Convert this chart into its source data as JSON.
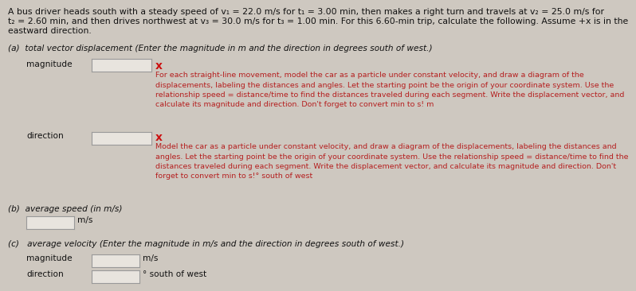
{
  "bg_color": "#cec8c0",
  "header_line1": "A bus driver heads south with a steady speed of v₁ = 22.0 m/s for t₁ = 3.00 min, then makes a right turn and travels at v₂ = 25.0 m/s for",
  "header_line2": "t₂ = 2.60 min, and then drives northwest at v₃ = 30.0 m/s for t₃ = 1.00 min. For this 6.60-min trip, calculate the following. Assume +x is in the",
  "header_line3": "eastward direction.",
  "part_a_label": "(a)  total vector displacement (Enter the magnitude in m and the direction in degrees south of west.)",
  "magnitude_label": "magnitude",
  "direction_label": "direction",
  "hint_a_mag": "For each straight-line movement, model the car as a particle under constant velocity, and draw a diagram of the\ndisplacements, labeling the distances and angles. Let the starting point be the origin of your coordinate system. Use the\nrelationship speed = distance/time to find the distances traveled during each segment. Write the displacement vector, and\ncalculate its magnitude and direction. Don't forget to convert min to s! m",
  "hint_a_dir": "Model the car as a particle under constant velocity, and draw a diagram of the displacements, labeling the distances and\nangles. Let the starting point be the origin of your coordinate system. Use the relationship speed = distance/time to find the\ndistances traveled during each segment. Write the displacement vector, and calculate its magnitude and direction. Don't\nforget to convert min to s!° south of west",
  "part_b_label": "(b)  average speed (in m/s)",
  "part_b_unit": "m/s",
  "part_c_label": "(c)   average velocity (Enter the magnitude in m/s and the direction in degrees south of west.)",
  "magnitude_c_label": "magnitude",
  "direction_c_label": "direction",
  "unit_c_mag": "m/s",
  "unit_c_dir": "° south of west",
  "hint_color": "#b52020",
  "text_color": "#111111",
  "box_facecolor": "#e8e4de",
  "box_edgecolor": "#999999",
  "x_color": "#cc1111"
}
